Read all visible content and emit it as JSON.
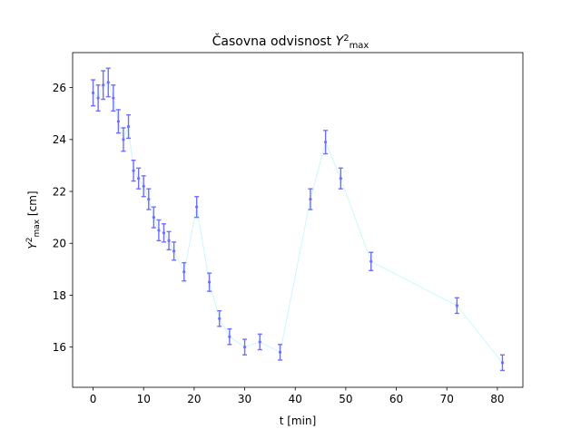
{
  "chart_data": {
    "type": "scatter",
    "title_base": "Časovna odvisnost ",
    "title_var": "Y",
    "title_sup": "2",
    "title_sub": "max",
    "xlabel": "t [min]",
    "ylabel_var": "Y",
    "ylabel_sup": "2",
    "ylabel_sub": "max",
    "ylabel_unit": " [cm]",
    "xlim": [
      -4.05,
      85.05
    ],
    "ylim": [
      14.45,
      27.35
    ],
    "xticks": [
      0,
      10,
      20,
      30,
      40,
      50,
      60,
      70,
      80
    ],
    "yticks": [
      16,
      18,
      20,
      22,
      24,
      26
    ],
    "grid": false,
    "legend": "none",
    "colors": {
      "points": "#6f6fff",
      "line": "#ccf7fb",
      "axes": "#000000"
    },
    "series": [
      {
        "points": [
          {
            "x": 0,
            "y": 25.8,
            "err": 0.5
          },
          {
            "x": 1,
            "y": 25.6,
            "err": 0.5
          },
          {
            "x": 2,
            "y": 26.1,
            "err": 0.55
          },
          {
            "x": 3,
            "y": 26.2,
            "err": 0.55
          },
          {
            "x": 4,
            "y": 25.6,
            "err": 0.5
          },
          {
            "x": 5,
            "y": 24.7,
            "err": 0.45
          },
          {
            "x": 6,
            "y": 24.0,
            "err": 0.45
          },
          {
            "x": 7,
            "y": 24.5,
            "err": 0.45
          },
          {
            "x": 8,
            "y": 22.8,
            "err": 0.4
          },
          {
            "x": 9,
            "y": 22.5,
            "err": 0.4
          },
          {
            "x": 10,
            "y": 22.2,
            "err": 0.4
          },
          {
            "x": 11,
            "y": 21.7,
            "err": 0.4
          },
          {
            "x": 12,
            "y": 21.0,
            "err": 0.4
          },
          {
            "x": 13,
            "y": 20.5,
            "err": 0.4
          },
          {
            "x": 14,
            "y": 20.4,
            "err": 0.35
          },
          {
            "x": 15,
            "y": 20.1,
            "err": 0.35
          },
          {
            "x": 16,
            "y": 19.7,
            "err": 0.35
          },
          {
            "x": 18,
            "y": 18.9,
            "err": 0.35
          },
          {
            "x": 20.5,
            "y": 21.4,
            "err": 0.4
          },
          {
            "x": 23,
            "y": 18.5,
            "err": 0.35
          },
          {
            "x": 25,
            "y": 17.1,
            "err": 0.3
          },
          {
            "x": 27,
            "y": 16.4,
            "err": 0.3
          },
          {
            "x": 30,
            "y": 16.0,
            "err": 0.3
          },
          {
            "x": 33,
            "y": 16.2,
            "err": 0.3
          },
          {
            "x": 37,
            "y": 15.8,
            "err": 0.3
          },
          {
            "x": 43,
            "y": 21.7,
            "err": 0.4
          },
          {
            "x": 46,
            "y": 23.9,
            "err": 0.45
          },
          {
            "x": 49,
            "y": 22.5,
            "err": 0.4
          },
          {
            "x": 55,
            "y": 19.3,
            "err": 0.35
          },
          {
            "x": 72,
            "y": 17.6,
            "err": 0.3
          },
          {
            "x": 81,
            "y": 15.4,
            "err": 0.3
          }
        ]
      }
    ]
  }
}
